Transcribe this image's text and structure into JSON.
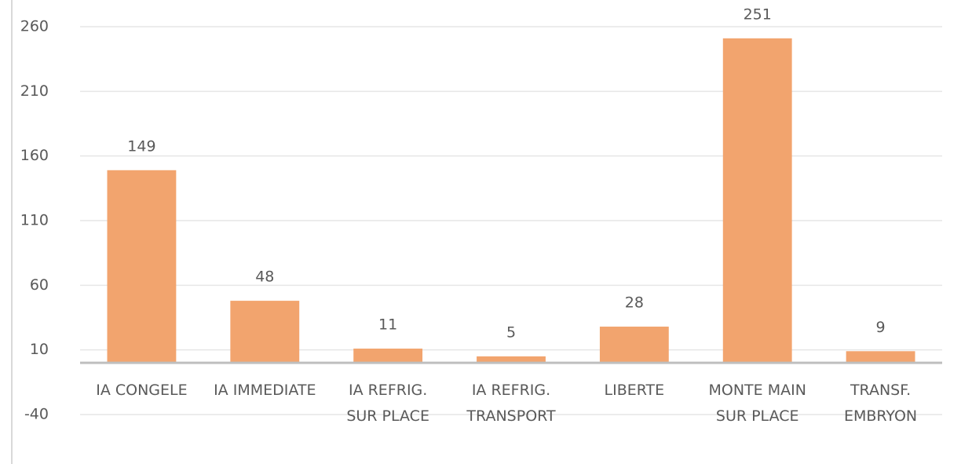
{
  "chart_data": {
    "type": "bar",
    "categories": [
      "IA CONGELE",
      "IA IMMEDIATE",
      "IA REFRIG. SUR PLACE",
      "IA REFRIG. TRANSPORT",
      "LIBERTE",
      "MONTE MAIN SUR PLACE",
      "TRANSF. EMBRYON"
    ],
    "values": [
      149,
      48,
      11,
      5,
      28,
      251,
      9
    ],
    "color": "#f2a46e",
    "ylim": [
      -40,
      260
    ],
    "yticks": [
      -40,
      10,
      60,
      110,
      160,
      210,
      260
    ],
    "grid": true
  }
}
